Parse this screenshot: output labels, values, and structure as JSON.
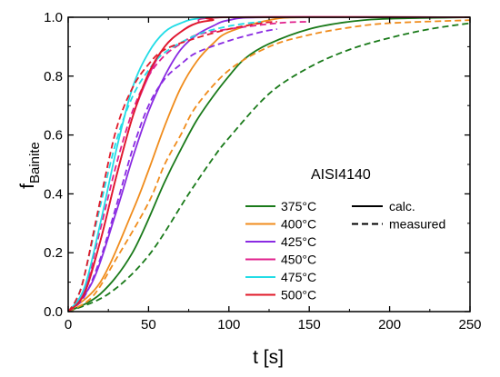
{
  "chart_data": {
    "type": "line",
    "title": "",
    "annotation": "AISI4140",
    "xlabel": "t [s]",
    "ylabel_main": "f",
    "ylabel_sub": "Bainite",
    "xlim": [
      0,
      250
    ],
    "ylim": [
      0,
      1.0
    ],
    "xticks": [
      "0",
      "50",
      "100",
      "150",
      "200",
      "250"
    ],
    "yticks": [
      "0.0",
      "0.2",
      "0.4",
      "0.6",
      "0.8",
      "1.0"
    ],
    "grid": false,
    "legend_placement": "bottom-center",
    "style_legend": [
      {
        "label": "calc.",
        "dash": "solid"
      },
      {
        "label": "measured",
        "dash": "dashed"
      }
    ],
    "series": [
      {
        "name": "375°C",
        "color": "#1a7a1a",
        "calc": [
          [
            0,
            0
          ],
          [
            20,
            0.06
          ],
          [
            40,
            0.2
          ],
          [
            60,
            0.44
          ],
          [
            70,
            0.55
          ],
          [
            80,
            0.65
          ],
          [
            90,
            0.73
          ],
          [
            100,
            0.8
          ],
          [
            110,
            0.86
          ],
          [
            125,
            0.91
          ],
          [
            150,
            0.96
          ],
          [
            175,
            0.985
          ],
          [
            200,
            0.995
          ],
          [
            250,
            1.0
          ]
        ],
        "measured": [
          [
            0,
            0
          ],
          [
            25,
            0.06
          ],
          [
            50,
            0.19
          ],
          [
            75,
            0.4
          ],
          [
            90,
            0.52
          ],
          [
            100,
            0.59
          ],
          [
            125,
            0.74
          ],
          [
            150,
            0.83
          ],
          [
            175,
            0.89
          ],
          [
            200,
            0.93
          ],
          [
            225,
            0.96
          ],
          [
            250,
            0.98
          ]
        ]
      },
      {
        "name": "400°C",
        "color": "#f08c1c",
        "calc": [
          [
            0,
            0
          ],
          [
            20,
            0.1
          ],
          [
            40,
            0.34
          ],
          [
            50,
            0.48
          ],
          [
            60,
            0.63
          ],
          [
            70,
            0.76
          ],
          [
            80,
            0.85
          ],
          [
            90,
            0.91
          ],
          [
            100,
            0.95
          ],
          [
            125,
            0.99
          ],
          [
            150,
            1.0
          ],
          [
            250,
            1.0
          ]
        ],
        "measured": [
          [
            0,
            0
          ],
          [
            15,
            0.05
          ],
          [
            30,
            0.18
          ],
          [
            50,
            0.37
          ],
          [
            60,
            0.5
          ],
          [
            70,
            0.6
          ],
          [
            80,
            0.7
          ],
          [
            100,
            0.82
          ],
          [
            125,
            0.9
          ],
          [
            150,
            0.94
          ],
          [
            175,
            0.965
          ],
          [
            200,
            0.98
          ],
          [
            250,
            0.99
          ]
        ]
      },
      {
        "name": "425°C",
        "color": "#8a2be2",
        "calc": [
          [
            0,
            0
          ],
          [
            15,
            0.1
          ],
          [
            30,
            0.34
          ],
          [
            40,
            0.52
          ],
          [
            50,
            0.68
          ],
          [
            60,
            0.8
          ],
          [
            70,
            0.89
          ],
          [
            80,
            0.94
          ],
          [
            90,
            0.97
          ],
          [
            100,
            0.99
          ],
          [
            125,
            1.0
          ],
          [
            250,
            1.0
          ]
        ],
        "measured": [
          [
            0,
            0
          ],
          [
            10,
            0.05
          ],
          [
            20,
            0.18
          ],
          [
            30,
            0.36
          ],
          [
            40,
            0.55
          ],
          [
            50,
            0.7
          ],
          [
            60,
            0.79
          ],
          [
            70,
            0.84
          ],
          [
            80,
            0.88
          ],
          [
            100,
            0.92
          ],
          [
            120,
            0.95
          ],
          [
            130,
            0.96
          ]
        ]
      },
      {
        "name": "450°C",
        "color": "#e0208c",
        "calc": [
          [
            0,
            0
          ],
          [
            10,
            0.07
          ],
          [
            20,
            0.24
          ],
          [
            30,
            0.46
          ],
          [
            40,
            0.66
          ],
          [
            50,
            0.8
          ],
          [
            60,
            0.9
          ],
          [
            70,
            0.95
          ],
          [
            80,
            0.98
          ],
          [
            100,
            1.0
          ],
          [
            250,
            1.0
          ]
        ],
        "measured": [
          [
            0,
            0
          ],
          [
            10,
            0.07
          ],
          [
            20,
            0.28
          ],
          [
            30,
            0.5
          ],
          [
            40,
            0.68
          ],
          [
            50,
            0.8
          ],
          [
            60,
            0.87
          ],
          [
            70,
            0.91
          ],
          [
            80,
            0.94
          ],
          [
            100,
            0.96
          ],
          [
            130,
            0.98
          ],
          [
            150,
            0.985
          ]
        ]
      },
      {
        "name": "475°C",
        "color": "#22dce6",
        "calc": [
          [
            0,
            0
          ],
          [
            10,
            0.08
          ],
          [
            20,
            0.3
          ],
          [
            30,
            0.55
          ],
          [
            40,
            0.76
          ],
          [
            50,
            0.88
          ],
          [
            60,
            0.95
          ],
          [
            70,
            0.98
          ],
          [
            80,
            0.995
          ],
          [
            100,
            1.0
          ],
          [
            250,
            1.0
          ]
        ],
        "measured": [
          [
            0,
            0
          ],
          [
            5,
            0.04
          ],
          [
            10,
            0.12
          ],
          [
            20,
            0.36
          ],
          [
            30,
            0.58
          ],
          [
            40,
            0.73
          ],
          [
            50,
            0.82
          ],
          [
            60,
            0.88
          ],
          [
            80,
            0.94
          ],
          [
            100,
            0.97
          ],
          [
            120,
            0.985
          ]
        ]
      },
      {
        "name": "500°C",
        "color": "#e01a2a",
        "calc": [
          [
            0,
            0
          ],
          [
            10,
            0.06
          ],
          [
            20,
            0.24
          ],
          [
            30,
            0.46
          ],
          [
            40,
            0.66
          ],
          [
            50,
            0.81
          ],
          [
            60,
            0.9
          ],
          [
            70,
            0.95
          ],
          [
            80,
            0.98
          ],
          [
            90,
            0.99
          ],
          [
            100,
            1.0
          ],
          [
            250,
            1.0
          ]
        ],
        "measured": [
          [
            0,
            0
          ],
          [
            5,
            0.04
          ],
          [
            10,
            0.12
          ],
          [
            20,
            0.38
          ],
          [
            30,
            0.62
          ],
          [
            40,
            0.76
          ],
          [
            50,
            0.84
          ],
          [
            60,
            0.89
          ],
          [
            80,
            0.93
          ],
          [
            100,
            0.96
          ],
          [
            120,
            0.98
          ],
          [
            130,
            0.985
          ]
        ]
      }
    ]
  }
}
